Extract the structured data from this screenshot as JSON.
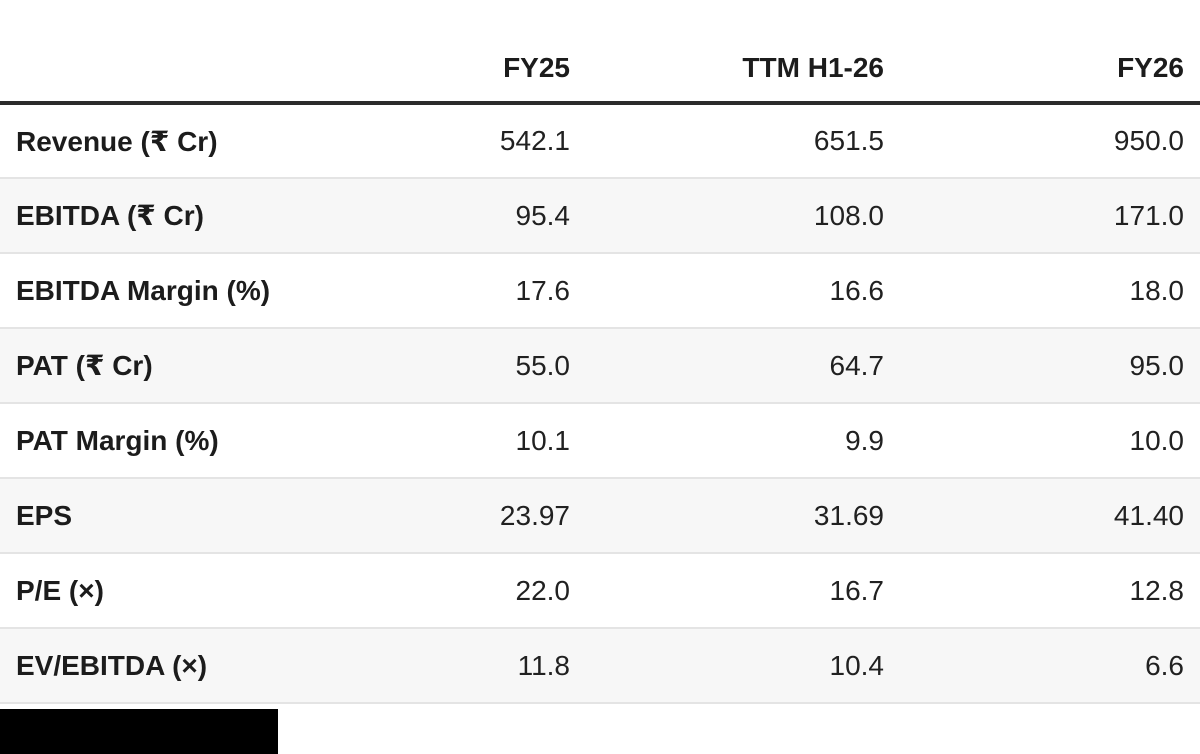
{
  "chart_data": {
    "type": "table",
    "title": "",
    "columns": [
      "",
      "FY25",
      "TTM H1-26",
      "FY26"
    ],
    "rows": [
      {
        "label": "Revenue (₹ Cr)",
        "values": [
          "542.1",
          "651.5",
          "950.0"
        ]
      },
      {
        "label": "EBITDA (₹ Cr)",
        "values": [
          "95.4",
          "108.0",
          "171.0"
        ]
      },
      {
        "label": "EBITDA Margin (%)",
        "values": [
          "17.6",
          "16.6",
          "18.0"
        ]
      },
      {
        "label": "PAT (₹ Cr)",
        "values": [
          "55.0",
          "64.7",
          "95.0"
        ]
      },
      {
        "label": "PAT Margin (%)",
        "values": [
          "10.1",
          "9.9",
          "10.0"
        ]
      },
      {
        "label": "EPS",
        "values": [
          "23.97",
          "31.69",
          "41.40"
        ]
      },
      {
        "label": "P/E (×)",
        "values": [
          "22.0",
          "16.7",
          "12.8"
        ]
      },
      {
        "label": "EV/EBITDA (×)",
        "values": [
          "11.8",
          "10.4",
          "6.6"
        ]
      }
    ],
    "layout": {
      "striped": true,
      "stripe_rows": "even",
      "value_alignment": "right",
      "header_rule": "thick-dark",
      "grid": "horizontal-only"
    }
  },
  "colors": {
    "header_divider": "#2b2b2b",
    "row_stripe": "#f7f7f7",
    "row_border": "#e4e4e4",
    "text": "#1f1f1f",
    "background": "#ffffff",
    "redaction": "#000000"
  }
}
